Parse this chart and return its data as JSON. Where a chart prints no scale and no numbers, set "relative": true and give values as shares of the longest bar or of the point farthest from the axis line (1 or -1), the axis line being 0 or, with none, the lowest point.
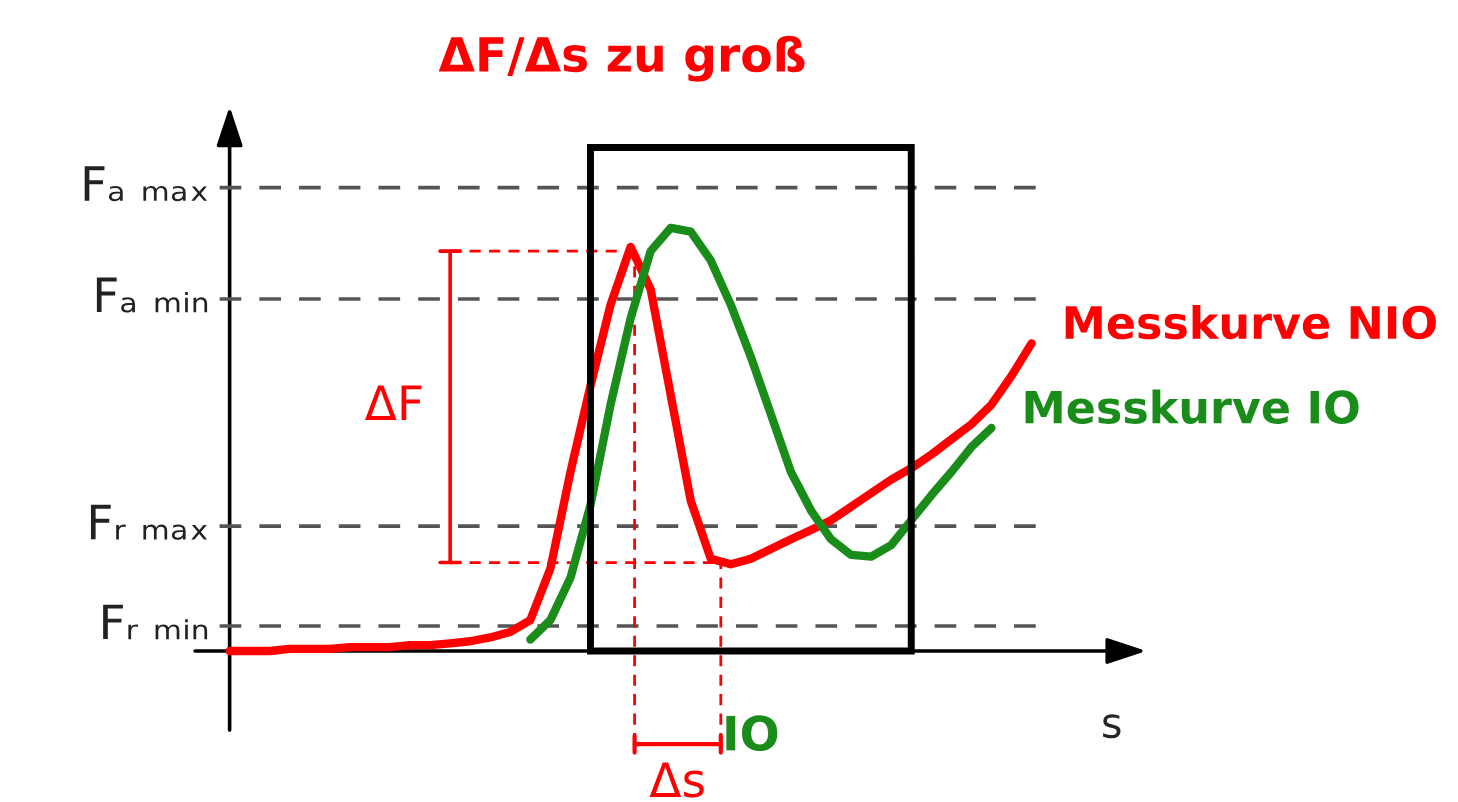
{
  "chart_data": {
    "type": "line",
    "relative": true,
    "title": "ΔF/Δs zu groß",
    "xlabel": "s",
    "marker": "none",
    "line_style": "solid",
    "categories": [
      null,
      null,
      null,
      null,
      null,
      null,
      null,
      null,
      null,
      null,
      null,
      null,
      null,
      null,
      null,
      null,
      null,
      null,
      null,
      null,
      null,
      null,
      null,
      null,
      null,
      null,
      null,
      null,
      null,
      null,
      null,
      null,
      null,
      null,
      null,
      null,
      null,
      null,
      null,
      null,
      null
    ],
    "series": [
      {
        "name": "Messkurve NIO",
        "color": "#ff0000",
        "values": [
          0,
          0,
          0,
          0.005,
          0.005,
          0.005,
          0.009,
          0.009,
          0.009,
          0.014,
          0.014,
          0.018,
          0.023,
          0.032,
          0.045,
          0.073,
          0.195,
          0.423,
          0.627,
          0.818,
          0.955,
          0.855,
          0.605,
          0.355,
          0.218,
          0.205,
          0.218,
          0.241,
          0.264,
          0.286,
          0.309,
          0.341,
          0.373,
          0.405,
          0.432,
          0.464,
          0.5,
          0.536,
          0.582,
          0.65,
          0.727
        ]
      },
      {
        "name": "Messkurve IO",
        "color": "#1a8c1a",
        "values": [
          null,
          null,
          null,
          null,
          null,
          null,
          null,
          null,
          null,
          null,
          null,
          null,
          null,
          null,
          null,
          0.027,
          0.073,
          0.173,
          0.345,
          0.582,
          0.786,
          0.945,
          1.0,
          0.991,
          0.923,
          0.818,
          0.695,
          0.559,
          0.423,
          0.332,
          0.264,
          0.227,
          0.223,
          0.25,
          0.309,
          0.368,
          0.423,
          0.482,
          0.527,
          null,
          null
        ]
      }
    ],
    "ref_lines": [
      {
        "axis": "y",
        "value": 1.095,
        "label": "Fₐ ₘₐₓ",
        "color": "#555555",
        "line_style": "dashed"
      },
      {
        "axis": "y",
        "value": 0.832,
        "label": "Fₐ ₘᵢₙ",
        "color": "#555555",
        "line_style": "dashed"
      },
      {
        "axis": "y",
        "value": 0.295,
        "label": "Fᵣ ₘₐₓ",
        "color": "#555555",
        "line_style": "dashed"
      },
      {
        "axis": "y",
        "value": 0.059,
        "label": "Fᵣ ₘᵢₙ",
        "color": "#555555",
        "line_style": "dashed"
      }
    ],
    "annotations": [
      "IO",
      "ΔF",
      "Δs"
    ]
  }
}
